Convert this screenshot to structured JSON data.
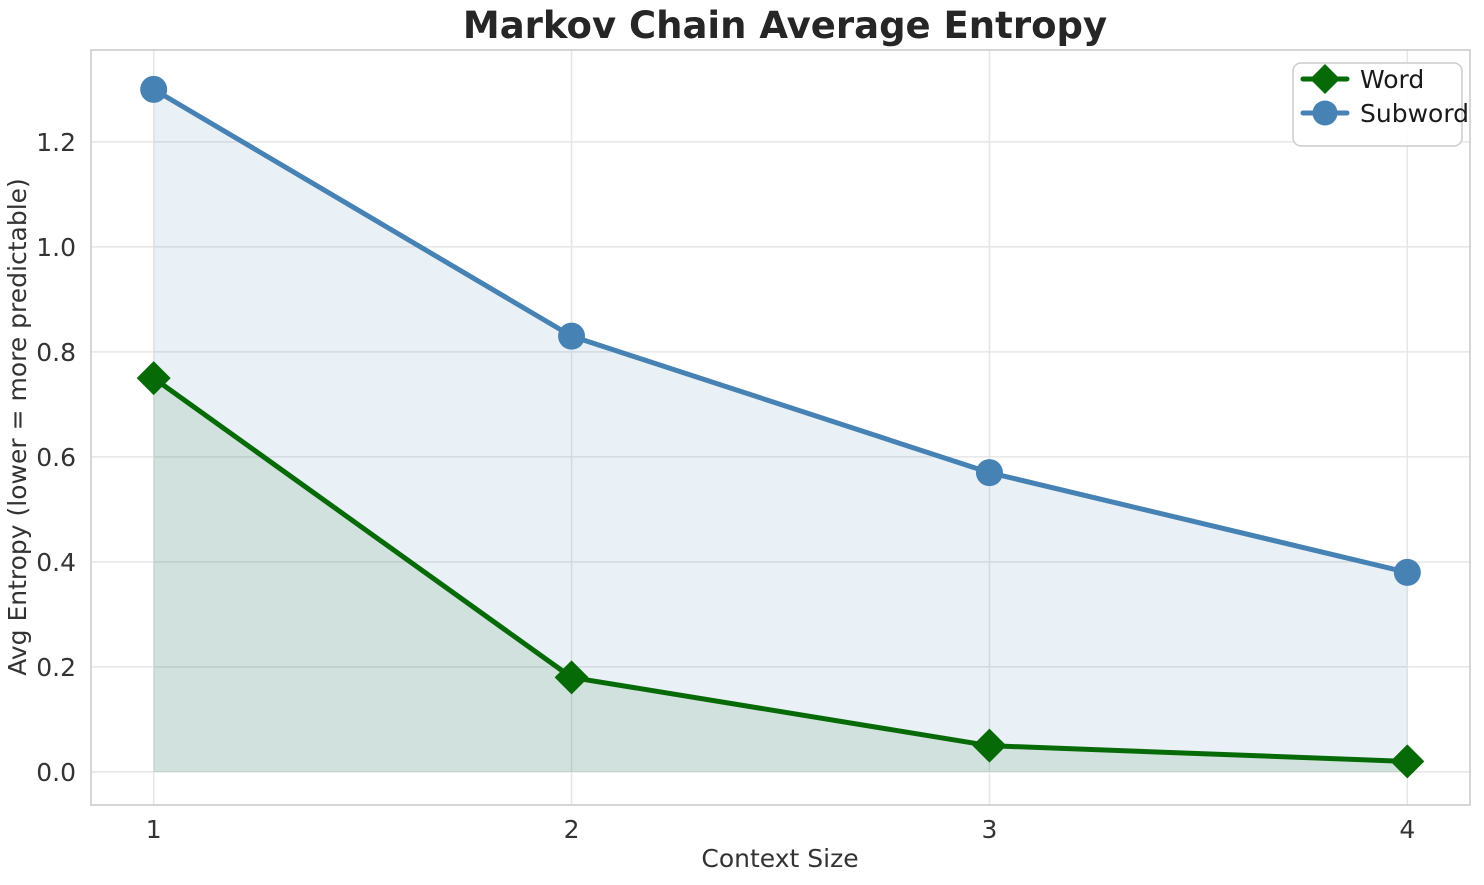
{
  "chart_data": {
    "type": "line",
    "title": "Markov Chain Average Entropy",
    "xlabel": "Context Size",
    "ylabel": "Avg Entropy (lower = more predictable)",
    "x": [
      1,
      2,
      3,
      4
    ],
    "series": [
      {
        "name": "Word",
        "values": [
          0.75,
          0.18,
          0.05,
          0.02
        ],
        "color": "#066a06",
        "fill": "rgba(0,100,0,0.10)",
        "marker": "diamond"
      },
      {
        "name": "Subword",
        "values": [
          1.3,
          0.83,
          0.57,
          0.38
        ],
        "color": "#4682b4",
        "fill": "rgba(70,130,180,0.12)",
        "marker": "circle"
      }
    ],
    "xticks": [
      1,
      2,
      3,
      4
    ],
    "yticks": [
      0.0,
      0.2,
      0.4,
      0.6,
      0.8,
      1.0,
      1.2
    ],
    "xlim": [
      0.85,
      4.15
    ],
    "ylim": [
      -0.063,
      1.375
    ],
    "grid": true,
    "legend_position": "upper right",
    "style": {
      "grid_color": "#e6e6e6",
      "spine_color": "#c9c9c9",
      "text_color": "#333333",
      "title_color": "#262626"
    }
  }
}
